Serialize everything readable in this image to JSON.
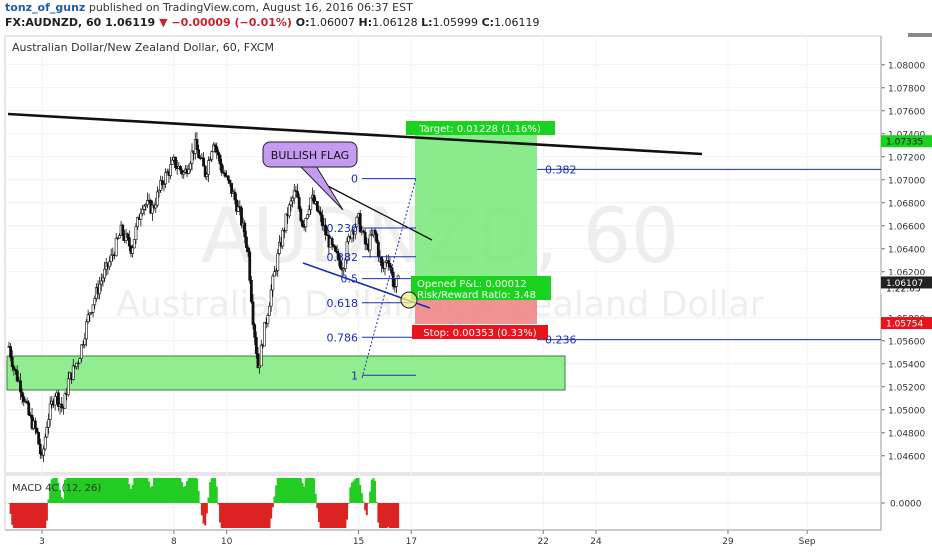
{
  "header": {
    "user": "tonz_of_gunz",
    "published": "published on TradingView.com, August 16, 2016 06:37 EST",
    "symbol": "FX:AUDNZD, 60",
    "last": "1.06119",
    "change": "▼ −0.00009 (−0.01%)",
    "open_label": "O:",
    "open": "1.06007",
    "high_label": "H:",
    "high": "1.06128",
    "low_label": "L:",
    "low": "1.05999",
    "close_label": "C:",
    "close": "1.06119"
  },
  "chart_title": "Australian Dollar/New Zealand Dollar, 60, FXCM",
  "watermark": {
    "symbol": "AUDNZD, 60",
    "name": "Australian Dollar/New Zealand Dollar"
  },
  "colors": {
    "bull": "#1a1a1a",
    "trendline": "#111111",
    "fib": "#1a2fb5",
    "target_zone": "#74e874",
    "stop_zone": "#f08080",
    "support_zone": "#90ee90",
    "macd_pos": "#22cc22",
    "macd_neg": "#dd2222",
    "price_tag": "#222222",
    "stop_tag": "#e8141b",
    "target_tag": "#19d31e"
  },
  "chart_data": {
    "type": "candlestick",
    "price_axis": {
      "min": 1.0445,
      "max": 1.0825,
      "ticks": [
        "1.08000",
        "1.07800",
        "1.07600",
        "1.07400",
        "1.07200",
        "1.07000",
        "1.06800",
        "1.06600",
        "1.06400",
        "1.06200",
        "1.05800",
        "1.05600",
        "1.05400",
        "1.05200",
        "1.05000",
        "1.04800",
        "1.04600"
      ]
    },
    "x_axis": {
      "ticks": [
        {
          "label": "3",
          "day": 3
        },
        {
          "label": "8",
          "day": 8
        },
        {
          "label": "10",
          "day": 10
        },
        {
          "label": "15",
          "day": 15
        },
        {
          "label": "17",
          "day": 17
        },
        {
          "label": "22",
          "day": 22
        },
        {
          "label": "24",
          "day": 24
        },
        {
          "label": "29",
          "day": 29
        },
        {
          "label": "Sep",
          "day": 32
        }
      ],
      "day_range": [
        1.6,
        34.8
      ]
    },
    "price_path": [
      [
        1.75,
        1.0555
      ],
      [
        1.95,
        1.0535
      ],
      [
        2.2,
        1.052
      ],
      [
        2.5,
        1.0495
      ],
      [
        2.8,
        1.048
      ],
      [
        3.0,
        1.0455
      ],
      [
        3.2,
        1.049
      ],
      [
        3.5,
        1.0515
      ],
      [
        3.8,
        1.05
      ],
      [
        4.0,
        1.0525
      ],
      [
        4.4,
        1.0545
      ],
      [
        4.8,
        1.0585
      ],
      [
        5.2,
        1.061
      ],
      [
        5.6,
        1.063
      ],
      [
        6.0,
        1.0655
      ],
      [
        6.4,
        1.064
      ],
      [
        6.8,
        1.068
      ],
      [
        7.2,
        1.0675
      ],
      [
        7.6,
        1.07
      ],
      [
        8.0,
        1.0715
      ],
      [
        8.4,
        1.0705
      ],
      [
        8.8,
        1.073
      ],
      [
        9.2,
        1.0705
      ],
      [
        9.5,
        1.0735
      ],
      [
        9.8,
        1.071
      ],
      [
        10.2,
        1.069
      ],
      [
        10.5,
        1.067
      ],
      [
        10.8,
        1.064
      ],
      [
        11.0,
        1.058
      ],
      [
        11.2,
        1.0535
      ],
      [
        11.4,
        1.0565
      ],
      [
        11.7,
        1.0605
      ],
      [
        12.0,
        1.064
      ],
      [
        12.3,
        1.067
      ],
      [
        12.6,
        1.069
      ],
      [
        12.9,
        1.066
      ],
      [
        13.2,
        1.0685
      ],
      [
        13.5,
        1.067
      ],
      [
        13.8,
        1.065
      ],
      [
        14.1,
        1.0635
      ],
      [
        14.4,
        1.0625
      ],
      [
        14.7,
        1.0655
      ],
      [
        15.0,
        1.0665
      ],
      [
        15.3,
        1.064
      ],
      [
        15.6,
        1.0655
      ],
      [
        15.9,
        1.062
      ],
      [
        16.1,
        1.0635
      ],
      [
        16.35,
        1.0607
      ],
      [
        16.55,
        1.06119
      ]
    ],
    "macd": {
      "name": "MACD 4C (12, 26)",
      "range": [
        -0.0005,
        0.0005
      ],
      "tick": "0.0000"
    },
    "price_tags": [
      {
        "price": 1.07335,
        "label": "1.07335",
        "kind": "target"
      },
      {
        "price": 1.06119,
        "label": "1.06119",
        "kind": "last"
      },
      {
        "price": 1.0606,
        "label": "1:22:03",
        "kind": "countdown"
      },
      {
        "price": 1.06107,
        "label": "1.06107",
        "kind": "price"
      },
      {
        "price": 1.05754,
        "label": "1.05754",
        "kind": "stop"
      }
    ]
  },
  "annotations": {
    "bullish_flag": "BULLISH FLAG",
    "target": "Target: 0.01228 (1.16%)",
    "stop": "Stop: 0.00353 (0.33%)",
    "opened_pnl": "Opened P&L: 0.00012",
    "risk_reward": "Risk/Reward Ratio: 3.48",
    "fib_left": [
      {
        "label": "0",
        "price": 1.0701
      },
      {
        "label": "0.236",
        "price": 1.0658
      },
      {
        "label": "0.382",
        "price": 1.0633
      },
      {
        "label": "0.5",
        "price": 1.0614
      },
      {
        "label": "0.618",
        "price": 1.0593
      },
      {
        "label": "0.786",
        "price": 1.0563
      },
      {
        "label": "1",
        "price": 1.053
      }
    ],
    "fib_right": [
      {
        "label": "0.382",
        "price": 1.0709
      },
      {
        "label": "0.236",
        "price": 1.0561
      }
    ]
  }
}
